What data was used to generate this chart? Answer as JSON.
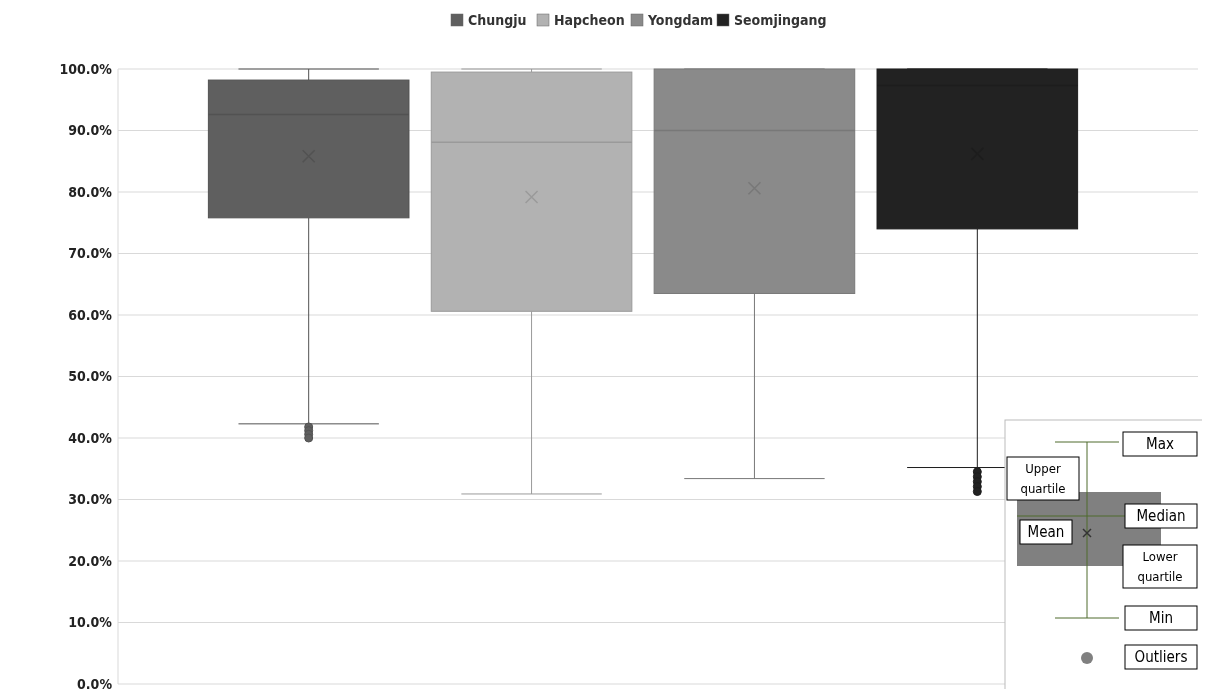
{
  "chart_data": {
    "type": "box",
    "categories": [
      null
    ],
    "series": [
      {
        "name": "Chungju",
        "color": "#5f5f5f",
        "boxes": [
          {
            "low": 42.3,
            "q1": 75.8,
            "median": 92.6,
            "q3": 98.2,
            "high": 100,
            "mean": 85.8,
            "outliers": [
              41.8,
              41.2,
              40.6,
              40
            ]
          }
        ]
      },
      {
        "name": "Hapcheon",
        "color": "#b2b2b2",
        "boxes": [
          {
            "low": 30.9,
            "q1": 60.6,
            "median": 88.1,
            "q3": 99.5,
            "high": 100,
            "mean": 79.2
          }
        ]
      },
      {
        "name": "Yongdam",
        "color": "#8a8a8a",
        "boxes": [
          {
            "low": 33.4,
            "q1": 63.5,
            "median": 90,
            "q3": 100,
            "high": 100,
            "mean": 80.6
          }
        ]
      },
      {
        "name": "Seomjingang",
        "color": "#222222",
        "boxes": [
          {
            "low": 35.2,
            "q1": 74,
            "median": 97.3,
            "q3": 100,
            "high": 100,
            "mean": 86.2,
            "outliers": [
              34.5,
              33.7,
              32.9,
              32.1,
              31.3
            ]
          }
        ]
      }
    ],
    "ylim": [
      0,
      100
    ],
    "yticks": [
      {
        "value": 0,
        "label": "0.0%"
      },
      {
        "value": 10,
        "label": "10.0%"
      },
      {
        "value": 20,
        "label": "20.0%"
      },
      {
        "value": 30,
        "label": "30.0%"
      },
      {
        "value": 40,
        "label": "40.0%"
      },
      {
        "value": 50,
        "label": "50.0%"
      },
      {
        "value": 60,
        "label": "60.0%"
      },
      {
        "value": 70,
        "label": "70.0%"
      },
      {
        "value": 80,
        "label": "80.0%"
      },
      {
        "value": 90,
        "label": "90.0%"
      },
      {
        "value": 100,
        "label": "100.0%"
      }
    ],
    "grid": "y",
    "legend": "top",
    "annotations": [
      "Max",
      "Upper quartile",
      "Median",
      "Mean",
      "Lower quartile",
      "Min",
      "Outliers"
    ]
  }
}
